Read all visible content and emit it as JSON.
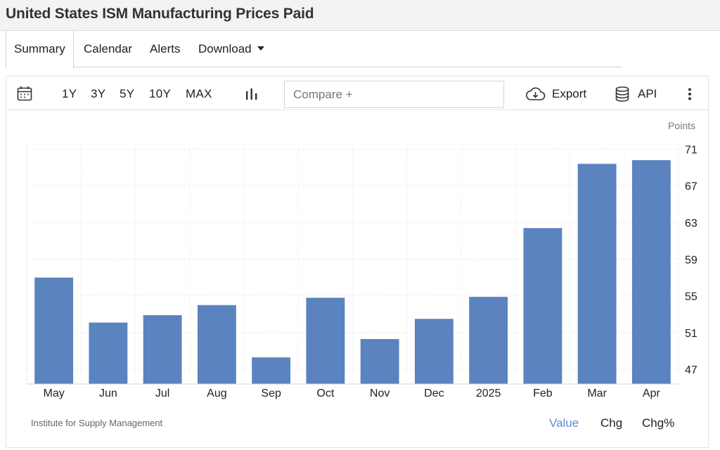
{
  "page": {
    "title": "United States ISM Manufacturing Prices Paid"
  },
  "tabs": [
    {
      "label": "Summary",
      "active": true
    },
    {
      "label": "Calendar"
    },
    {
      "label": "Alerts"
    },
    {
      "label": "Download",
      "icon": "caret-down-icon"
    }
  ],
  "toolbar": {
    "ranges": [
      "1Y",
      "3Y",
      "5Y",
      "10Y",
      "MAX"
    ],
    "compare_placeholder": "Compare +",
    "export_label": "Export",
    "api_label": "API",
    "icons": [
      "calendar-icon",
      "bar-chart-icon",
      "cloud-download-icon",
      "database-icon",
      "more-vertical-icon"
    ]
  },
  "chart_data": {
    "type": "bar",
    "categories": [
      "May",
      "Jun",
      "Jul",
      "Aug",
      "Sep",
      "Oct",
      "Nov",
      "Dec",
      "2025",
      "Feb",
      "Mar",
      "Apr"
    ],
    "values": [
      57.0,
      52.1,
      52.9,
      54.0,
      48.3,
      54.8,
      50.3,
      52.5,
      54.9,
      62.4,
      69.4,
      69.8
    ],
    "units": "Points",
    "yticks": [
      47,
      51,
      55,
      59,
      63,
      67,
      71
    ],
    "ylim": [
      45.4,
      71.8
    ],
    "grid": true,
    "bar_color": "#5a83bf",
    "y_axis_position": "right"
  },
  "footer": {
    "source": "Institute for Supply Management",
    "view_toggles": [
      "Value",
      "Chg",
      "Chg%"
    ],
    "active_toggle": "Value",
    "accent_color": "#5b8bd6"
  }
}
